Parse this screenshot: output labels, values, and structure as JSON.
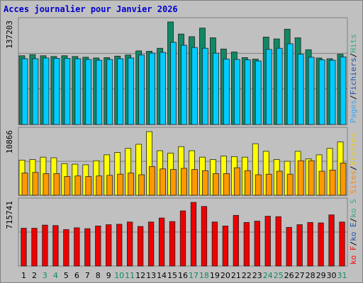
{
  "chart_data": {
    "type": "bar",
    "title": "Acces journalier pour Janvier 2026",
    "days": [
      "1",
      "2",
      "3",
      "4",
      "5",
      "6",
      "7",
      "8",
      "9",
      "10",
      "11",
      "12",
      "13",
      "14",
      "15",
      "16",
      "17",
      "18",
      "19",
      "20",
      "21",
      "22",
      "23",
      "24",
      "25",
      "26",
      "27",
      "28",
      "29",
      "30",
      "31"
    ],
    "weekend_days": [
      "3",
      "4",
      "10",
      "11",
      "17",
      "18",
      "24",
      "25",
      "31"
    ],
    "panels": [
      {
        "name": "hits-files-pages",
        "ymax": 137203,
        "ymax_label": "137203",
        "legend": [
          {
            "text": "Pages",
            "color": "#33aaff"
          },
          {
            "text": "Fichiers",
            "color": "#2255aa"
          },
          {
            "text": "Hits",
            "color": "#33aa88"
          }
        ],
        "separator": "/",
        "series": [
          {
            "name": "Hits",
            "color": "#118866",
            "values": [
              92000,
              93500,
              92000,
              91000,
              92000,
              91000,
              90000,
              89000,
              89500,
              91500,
              93000,
              98500,
              98000,
              102000,
              137203,
              121000,
              117500,
              129000,
              116000,
              101000,
              97000,
              89500,
              87500,
              117000,
              114500,
              127500,
              116000,
              100000,
              89000,
              88000,
              94000
            ]
          },
          {
            "name": "Pages",
            "color": "#00ccff",
            "values": [
              88000,
              88000,
              89000,
              88500,
              88500,
              88000,
              87000,
              86000,
              87000,
              88000,
              89000,
              93000,
              95500,
              96500,
              110000,
              106000,
              103000,
              102000,
              95500,
              87500,
              87000,
              86500,
              85000,
              100500,
              102000,
              108000,
              94000,
              90000,
              86500,
              86000,
              90500
            ]
          }
        ]
      },
      {
        "name": "sites-visites",
        "ymax": 10866,
        "ymax_label": "10866",
        "legend": [
          {
            "text": "Sites",
            "color": "#ff8800"
          },
          {
            "text": "Visites",
            "color": "#eecc00"
          }
        ],
        "separator": "/",
        "series": [
          {
            "name": "Visites",
            "color": "#ffff00",
            "values": [
              6000,
              6100,
              6500,
              6400,
              5400,
              5300,
              5200,
              5900,
              6900,
              7300,
              8000,
              8700,
              10866,
              7600,
              7200,
              8300,
              7600,
              6500,
              6100,
              6700,
              6600,
              6500,
              8800,
              7500,
              6100,
              5800,
              7500,
              6200,
              6900,
              8000,
              9100
            ]
          },
          {
            "name": "Sites",
            "color": "#ff9900",
            "values": [
              3800,
              3900,
              3700,
              3700,
              3200,
              3300,
              3200,
              3300,
              3400,
              3600,
              3800,
              3500,
              4900,
              4500,
              4400,
              4600,
              4400,
              4200,
              3700,
              3700,
              4700,
              4200,
              3500,
              3600,
              4100,
              3600,
              5900,
              5900,
              4100,
              4300,
              5500
            ]
          }
        ]
      },
      {
        "name": "kilo-octets",
        "ymax": 715741,
        "ymax_label": "715741",
        "legend": [
          {
            "text": "ko F",
            "color": "#ff0000"
          },
          {
            "text": "ko E",
            "color": "#2255aa"
          },
          {
            "text": "ko S",
            "color": "#33aa88"
          }
        ],
        "separator": "/",
        "series": [
          {
            "name": "ko F",
            "color": "#ee0000",
            "values": [
              425000,
              425000,
              460000,
              455000,
              410000,
              430000,
              420000,
              450000,
              465000,
              470000,
              495000,
              445000,
              495000,
              540000,
              500000,
              620000,
              715741,
              670000,
              495000,
              450000,
              570000,
              490000,
              505000,
              560000,
              555000,
              435000,
              465000,
              490000,
              485000,
              575000,
              495000
            ]
          }
        ]
      }
    ]
  }
}
